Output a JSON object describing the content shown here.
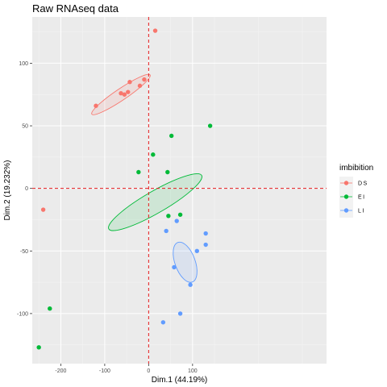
{
  "chart_data": {
    "type": "scatter",
    "title": "Raw RNAseq data",
    "xlabel": "Dim.1 (44.19%)",
    "ylabel": "Dim.2 (19.232%)",
    "xlim": [
      -265,
      405
    ],
    "ylim": [
      -140,
      137
    ],
    "x_ticks": [
      -200,
      -100,
      0,
      100
    ],
    "y_ticks": [
      -100,
      -50,
      0,
      50,
      100
    ],
    "x_tick_labels": [
      "-200",
      "-100",
      "0",
      "100"
    ],
    "y_tick_labels": [
      "-100",
      "-50",
      "0",
      "50",
      "100"
    ],
    "grid": true,
    "reference_lines": {
      "x": 0,
      "y": 0,
      "style": "dashed",
      "color": "#E41A1C"
    },
    "legend": {
      "title": "imbibition",
      "position": "right"
    },
    "series": [
      {
        "name": "DS",
        "color": "#F8766D",
        "points": [
          {
            "x": 15,
            "y": 126
          },
          {
            "x": -120,
            "y": 66
          },
          {
            "x": -63,
            "y": 76
          },
          {
            "x": -55,
            "y": 75
          },
          {
            "x": -47,
            "y": 77
          },
          {
            "x": -43,
            "y": 85
          },
          {
            "x": -20,
            "y": 82
          },
          {
            "x": -10,
            "y": 87
          },
          {
            "x": -240,
            "y": -17
          }
        ],
        "ellipse": {
          "cx": -63,
          "cy": 75,
          "rx": 80,
          "ry": 13,
          "angle_deg": 34
        }
      },
      {
        "name": "EI",
        "color": "#00BA38",
        "points": [
          {
            "x": 140,
            "y": 50
          },
          {
            "x": 52,
            "y": 42
          },
          {
            "x": 10,
            "y": 27
          },
          {
            "x": -23,
            "y": 13
          },
          {
            "x": 43,
            "y": 13
          },
          {
            "x": 45,
            "y": -22
          },
          {
            "x": 72,
            "y": -21
          },
          {
            "x": -225,
            "y": -96
          },
          {
            "x": -250,
            "y": -127
          }
        ],
        "ellipse": {
          "cx": 15,
          "cy": -11,
          "rx": 122,
          "ry": 25,
          "angle_deg": 30
        }
      },
      {
        "name": "LI",
        "color": "#619CFF",
        "points": [
          {
            "x": 64,
            "y": -26
          },
          {
            "x": 40,
            "y": -34
          },
          {
            "x": 110,
            "y": -50
          },
          {
            "x": 130,
            "y": -36
          },
          {
            "x": 130,
            "y": -45
          },
          {
            "x": 58,
            "y": -63
          },
          {
            "x": 95,
            "y": -77
          },
          {
            "x": 72,
            "y": -100
          },
          {
            "x": 33,
            "y": -107
          }
        ],
        "ellipse": {
          "cx": 83,
          "cy": -59,
          "rx": 48,
          "ry": 23,
          "angle_deg": -70
        }
      }
    ]
  }
}
